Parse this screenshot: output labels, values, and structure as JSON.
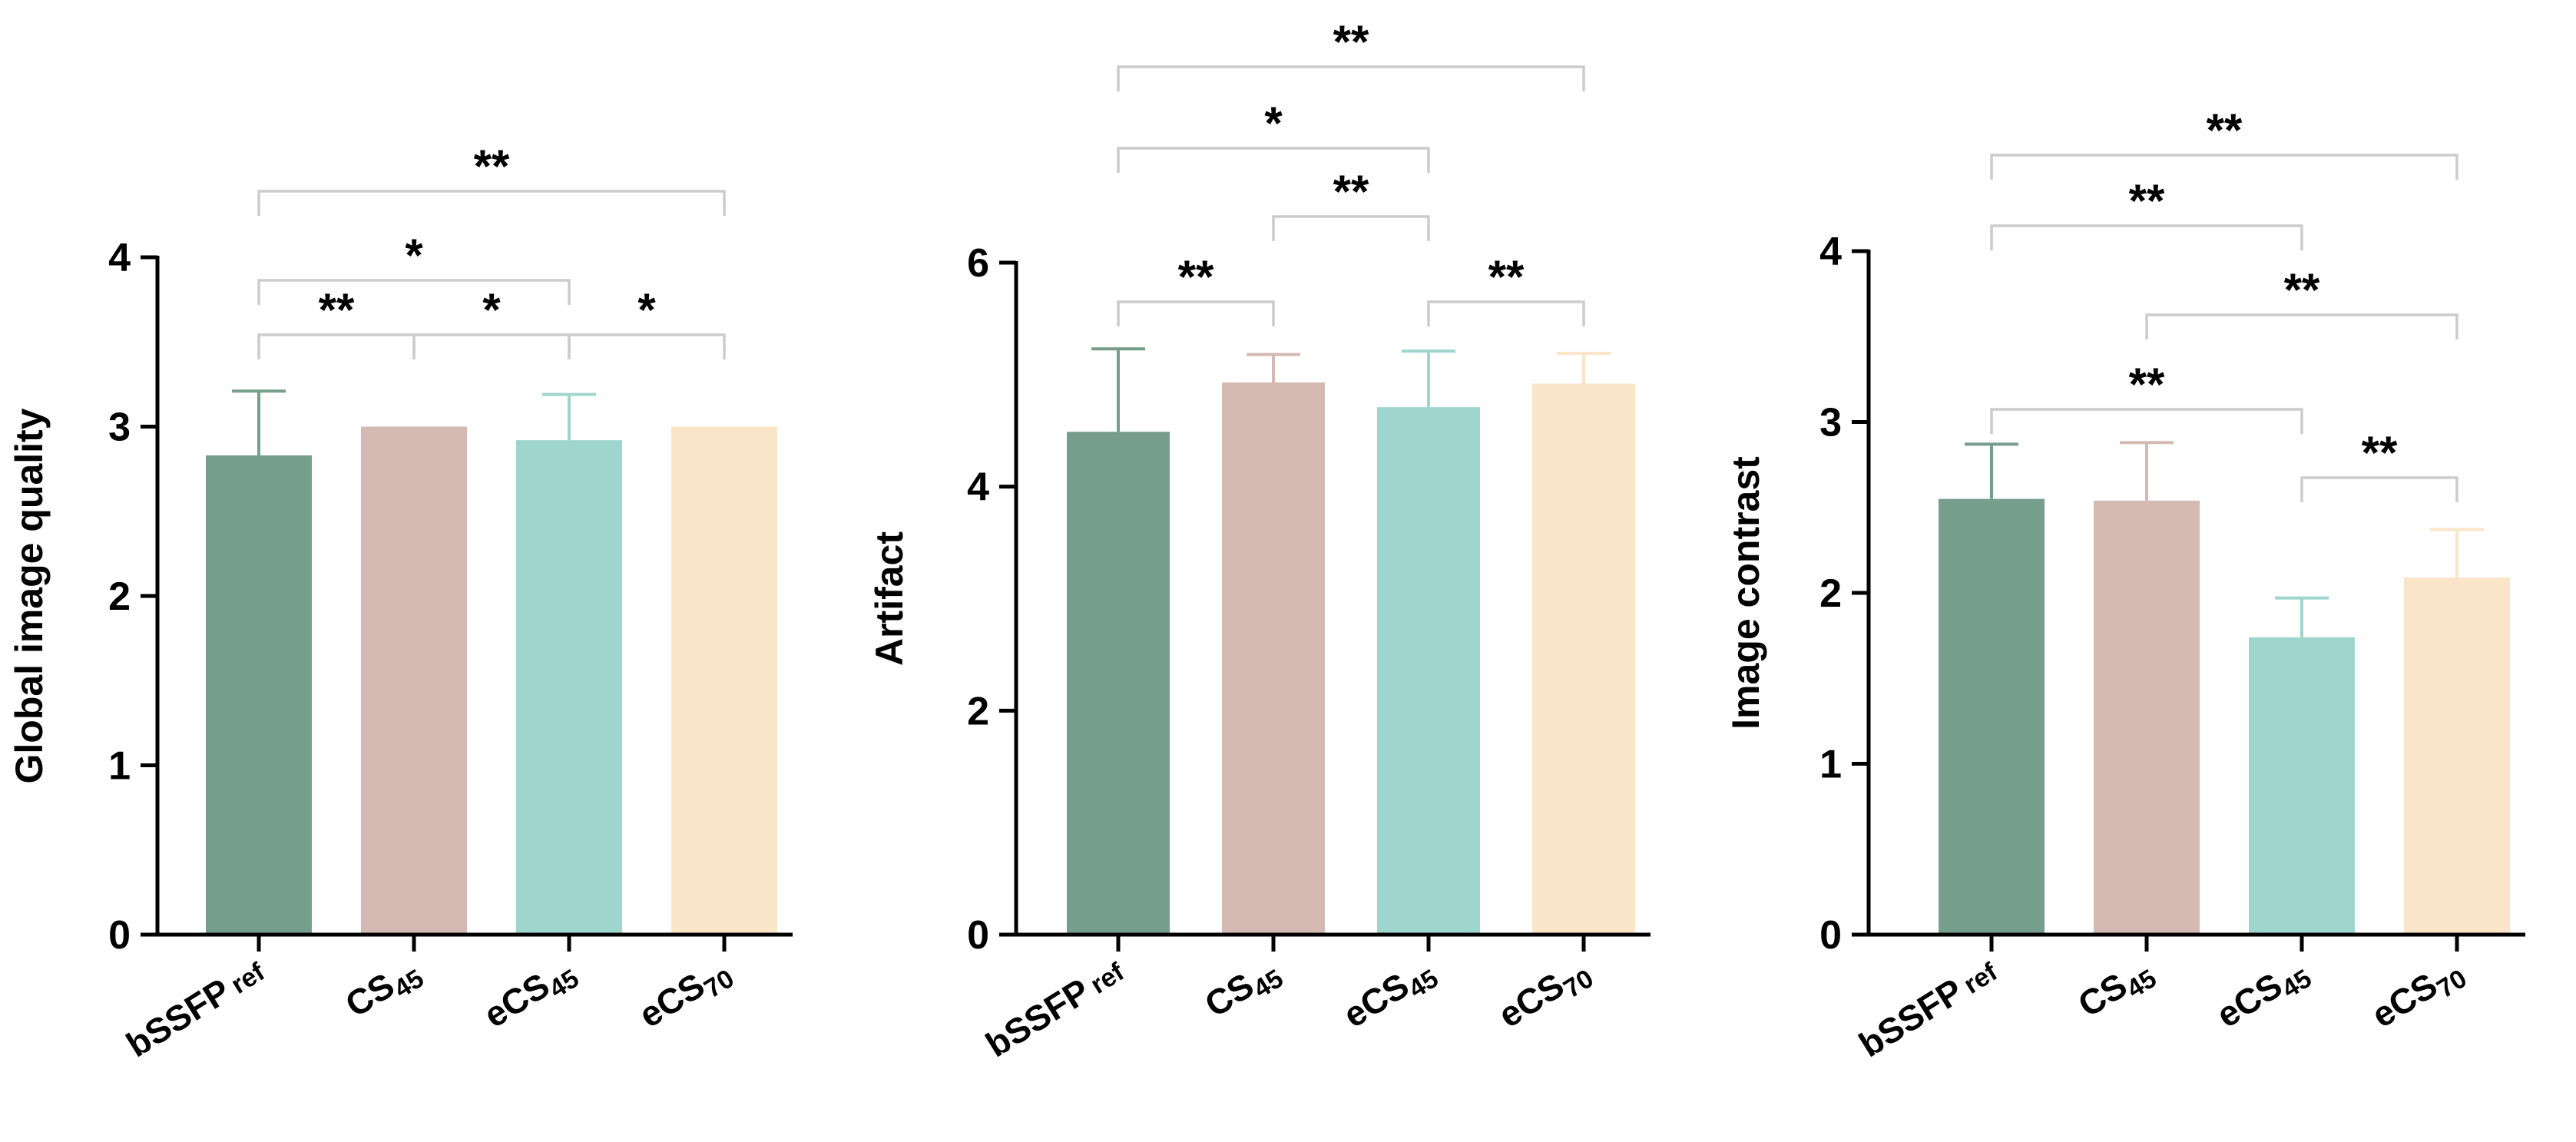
{
  "chart_data": [
    {
      "type": "bar",
      "categories": [
        {
          "main": "bSSFP",
          "sub": "ref",
          "sub_style": "space-small"
        },
        {
          "main": "CS",
          "sub": "45",
          "sub_style": "subscript"
        },
        {
          "main": "eCS",
          "sub": "45",
          "sub_style": "subscript"
        },
        {
          "main": "eCS",
          "sub": "70",
          "sub_style": "subscript"
        }
      ],
      "values": [
        2.83,
        3.0,
        2.92,
        3.0
      ],
      "errors": [
        0.38,
        0.0,
        0.27,
        0.0
      ],
      "ylabel": "Global image quality",
      "ylim": [
        0,
        4
      ],
      "yticks": [
        "0",
        "1",
        "2",
        "3",
        "4"
      ],
      "grid": false,
      "significance": [
        {
          "from": 0,
          "to": 1,
          "label": "**"
        },
        {
          "from": 1,
          "to": 2,
          "label": "*"
        },
        {
          "from": 2,
          "to": 3,
          "label": "*"
        },
        {
          "from": 0,
          "to": 2,
          "label": "*"
        },
        {
          "from": 0,
          "to": 3,
          "label": "**"
        }
      ]
    },
    {
      "type": "bar",
      "categories": [
        {
          "main": "bSSFP",
          "sub": "ref",
          "sub_style": "space-small"
        },
        {
          "main": "CS",
          "sub": "45",
          "sub_style": "subscript"
        },
        {
          "main": "eCS",
          "sub": "45",
          "sub_style": "subscript"
        },
        {
          "main": "eCS",
          "sub": "70",
          "sub_style": "subscript"
        }
      ],
      "values": [
        4.49,
        4.93,
        4.71,
        4.92
      ],
      "errors": [
        0.74,
        0.25,
        0.5,
        0.27
      ],
      "ylabel": "Artifact",
      "ylim": [
        0,
        6
      ],
      "yticks": [
        "0",
        "2",
        "4",
        "6"
      ],
      "grid": false,
      "significance": [
        {
          "from": 0,
          "to": 1,
          "label": "**"
        },
        {
          "from": 2,
          "to": 3,
          "label": "**"
        },
        {
          "from": 1,
          "to": 2,
          "label": "**"
        },
        {
          "from": 0,
          "to": 2,
          "label": "*"
        },
        {
          "from": 0,
          "to": 3,
          "label": "**"
        }
      ]
    },
    {
      "type": "bar",
      "categories": [
        {
          "main": "bSSFP",
          "sub": "ref",
          "sub_style": "space-small"
        },
        {
          "main": "CS",
          "sub": "45",
          "sub_style": "subscript"
        },
        {
          "main": "eCS",
          "sub": "45",
          "sub_style": "subscript"
        },
        {
          "main": "eCS",
          "sub": "70",
          "sub_style": "subscript"
        }
      ],
      "values": [
        2.55,
        2.54,
        1.74,
        2.09
      ],
      "errors": [
        0.32,
        0.34,
        0.23,
        0.28
      ],
      "ylabel": "Image contrast",
      "ylim": [
        0,
        4
      ],
      "yticks": [
        "0",
        "1",
        "2",
        "3",
        "4"
      ],
      "grid": false,
      "significance": [
        {
          "from": 2,
          "to": 3,
          "label": "**"
        },
        {
          "from": 0,
          "to": 2,
          "label": "**"
        },
        {
          "from": 1,
          "to": 3,
          "label": "**"
        },
        {
          "from": 0,
          "to": 2,
          "label": "**"
        },
        {
          "from": 0,
          "to": 3,
          "label": "**"
        }
      ]
    }
  ],
  "colors": {
    "bar_fill": [
      "#769e8d",
      "#d4bab2",
      "#9ed6ce",
      "#fbe5c8"
    ],
    "error_bar": [
      "#769e8d",
      "#d4bab2",
      "#9ed6ce",
      "#fbe5c8"
    ],
    "bracket": "#cccccc",
    "axis": "#000000"
  }
}
